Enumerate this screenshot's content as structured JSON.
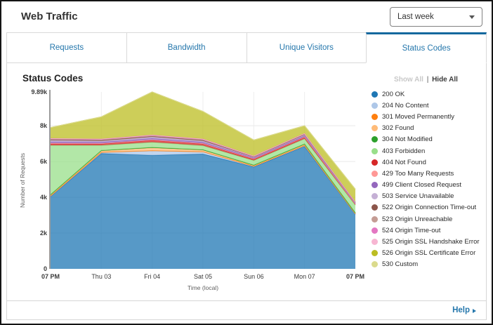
{
  "header": {
    "title": "Web Traffic",
    "range_selector": {
      "value": "Last week"
    }
  },
  "tabs": [
    {
      "label": "Requests",
      "active": false
    },
    {
      "label": "Bandwidth",
      "active": false
    },
    {
      "label": "Unique Visitors",
      "active": false
    },
    {
      "label": "Status Codes",
      "active": true
    }
  ],
  "panel": {
    "heading": "Status Codes",
    "legend": {
      "show_all": "Show All",
      "separator": "|",
      "hide_all": "Hide All"
    }
  },
  "footer": {
    "help_label": "Help"
  },
  "colors": {
    "accent_blue": "#2577ac",
    "active_tab_border": "#14689e",
    "axis_line": "#9b9b9b",
    "gridline": "#e9e9e9"
  },
  "chart_data": {
    "type": "area",
    "stacked": true,
    "title": "Status Codes",
    "xlabel": "Time (local)",
    "ylabel": "Number of Requests",
    "x": [
      "07 PM",
      "Thu 03",
      "Fri 04",
      "Sat 05",
      "Sun 06",
      "Mon 07",
      "07 PM"
    ],
    "x_bold": [
      true,
      false,
      false,
      false,
      false,
      false,
      true
    ],
    "ylim": [
      0,
      9890
    ],
    "yticks": [
      {
        "v": 0,
        "label": "0"
      },
      {
        "v": 2000,
        "label": "2k"
      },
      {
        "v": 4000,
        "label": "4k"
      },
      {
        "v": 6000,
        "label": "6k"
      },
      {
        "v": 8000,
        "label": "8k"
      },
      {
        "v": 9890,
        "label": "9.89k"
      }
    ],
    "grid": true,
    "legend_position": "right",
    "fill_opacity": 0.75,
    "series": [
      {
        "name": "200 OK",
        "color": "#1f77b4",
        "values": [
          4050,
          6450,
          6350,
          6420,
          5700,
          6850,
          3050
        ]
      },
      {
        "name": "204 No Content",
        "color": "#aec7e8",
        "values": [
          20,
          60,
          250,
          120,
          30,
          40,
          20
        ]
      },
      {
        "name": "301 Moved Permanently",
        "color": "#ff7f0e",
        "values": [
          10,
          10,
          10,
          10,
          10,
          10,
          10
        ]
      },
      {
        "name": "302 Found",
        "color": "#ffbb78",
        "values": [
          50,
          80,
          160,
          90,
          40,
          60,
          40
        ]
      },
      {
        "name": "304 Not Modified",
        "color": "#2ca02c",
        "values": [
          20,
          20,
          20,
          20,
          20,
          20,
          10
        ]
      },
      {
        "name": "403 Forbidden",
        "color": "#98df8a",
        "values": [
          2750,
          280,
          290,
          230,
          260,
          290,
          430
        ]
      },
      {
        "name": "404 Not Found",
        "color": "#d62728",
        "values": [
          90,
          90,
          110,
          100,
          70,
          90,
          60
        ]
      },
      {
        "name": "429 Too Many Requests",
        "color": "#ff9896",
        "values": [
          30,
          20,
          20,
          20,
          20,
          20,
          10
        ]
      },
      {
        "name": "499 Client Closed Request",
        "color": "#9467bd",
        "values": [
          90,
          80,
          90,
          80,
          50,
          60,
          40
        ]
      },
      {
        "name": "503 Service Unavailable",
        "color": "#c5b0d5",
        "values": [
          70,
          60,
          70,
          60,
          40,
          50,
          30
        ]
      },
      {
        "name": "522 Origin Connection Time-out",
        "color": "#8c564b",
        "values": [
          40,
          40,
          40,
          40,
          20,
          30,
          20
        ]
      },
      {
        "name": "523 Origin Unreachable",
        "color": "#c49c94",
        "values": [
          30,
          30,
          30,
          30,
          20,
          20,
          10
        ]
      },
      {
        "name": "524 Origin Time-out",
        "color": "#e377c2",
        "values": [
          30,
          30,
          30,
          30,
          20,
          20,
          10
        ]
      },
      {
        "name": "525 Origin SSL Handshake Error",
        "color": "#f7b6d2",
        "values": [
          20,
          20,
          20,
          20,
          20,
          20,
          10
        ]
      },
      {
        "name": "526 Origin SSL Certificate Error",
        "color": "#bcbd22",
        "values": [
          600,
          1230,
          2400,
          1530,
          880,
          420,
          700
        ]
      },
      {
        "name": "530 Custom",
        "color": "#dbdb8d",
        "values": [
          0,
          0,
          0,
          0,
          0,
          0,
          0
        ]
      }
    ]
  }
}
